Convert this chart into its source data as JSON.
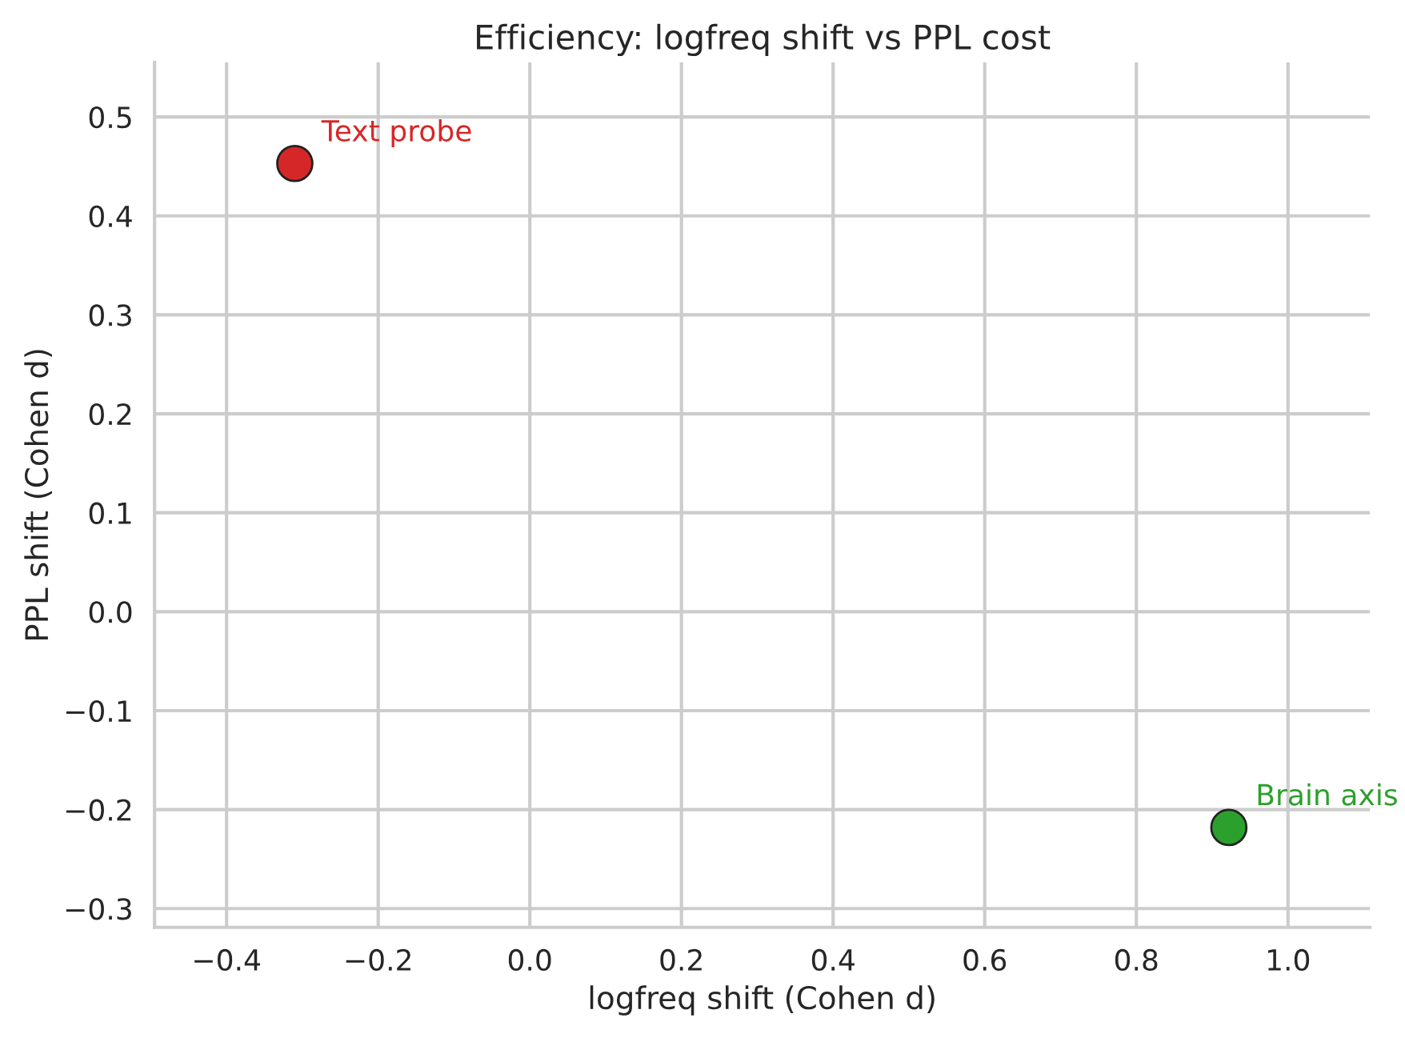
{
  "chart_data": {
    "type": "scatter",
    "title": "Efficiency: logfreq shift vs PPL cost",
    "xlabel": "logfreq shift (Cohen d)",
    "ylabel": "PPL shift (Cohen d)",
    "series": [
      {
        "name": "Text probe",
        "color": "#d62728",
        "x": [
          -0.31
        ],
        "values": [
          0.453
        ]
      },
      {
        "name": "Brain axis",
        "color": "#2ca02c",
        "x": [
          0.922
        ],
        "values": [
          -0.218
        ]
      }
    ],
    "xlim": [
      -0.495,
      1.108
    ],
    "xticks": [
      {
        "value": -0.4,
        "label": "−0.4"
      },
      {
        "value": -0.2,
        "label": "−0.2"
      },
      {
        "value": 0,
        "label": "0.0"
      },
      0.2,
      0.4,
      0.6,
      0.8,
      {
        "value": 1,
        "label": "1.0"
      }
    ],
    "ylim": [
      -0.319,
      0.555
    ],
    "yticks": [
      {
        "value": -0.3,
        "label": "−0.3"
      },
      {
        "value": -0.2,
        "label": "−0.2"
      },
      {
        "value": -0.1,
        "label": "−0.1"
      },
      {
        "value": 0,
        "label": "0.0"
      },
      0.1,
      0.2,
      0.3,
      0.4,
      0.5
    ],
    "grid": true,
    "marker": "circle"
  }
}
